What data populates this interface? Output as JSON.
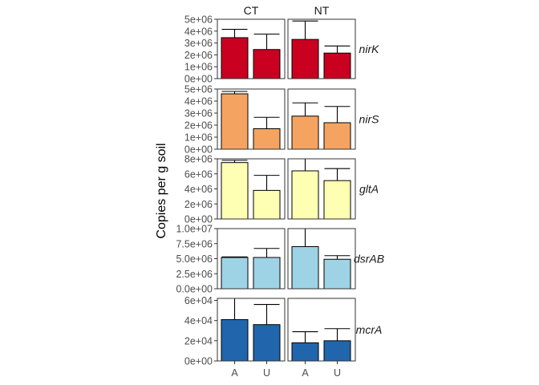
{
  "chart_data": {
    "type": "bar",
    "facet_columns": [
      "CT",
      "NT"
    ],
    "categories": [
      "A",
      "U"
    ],
    "ylabel": "Copies per g soil",
    "xlabel": "",
    "bar_outline_color": "#000000",
    "panels": [
      {
        "gene": "nirK",
        "color": "#CA0020",
        "yticks": [
          "0e+00",
          "1e+06",
          "2e+06",
          "3e+06",
          "4e+06",
          "5e+06"
        ],
        "ytick_values": [
          0,
          1000000,
          2000000,
          3000000,
          4000000,
          5000000
        ],
        "ylim": [
          0,
          5000000
        ],
        "CT": {
          "values": [
            3450000,
            2450000
          ],
          "error_upper": [
            4150000,
            3750000
          ]
        },
        "NT": {
          "values": [
            3300000,
            2150000
          ],
          "error_upper": [
            4850000,
            2750000
          ]
        }
      },
      {
        "gene": "nirS",
        "color": "#F4A460",
        "yticks": [
          "0e+00",
          "1e+06",
          "2e+06",
          "3e+06",
          "4e+06",
          "5e+06"
        ],
        "ytick_values": [
          0,
          1000000,
          2000000,
          3000000,
          4000000,
          5000000
        ],
        "ylim": [
          0,
          5000000
        ],
        "CT": {
          "values": [
            4600000,
            1700000
          ],
          "error_upper": [
            4800000,
            2650000
          ]
        },
        "NT": {
          "values": [
            2750000,
            2200000
          ],
          "error_upper": [
            3850000,
            3550000
          ]
        }
      },
      {
        "gene": "gltA",
        "color": "#FFFFB3",
        "yticks": [
          "0e+00",
          "2e+06",
          "4e+06",
          "6e+06",
          "8e+06"
        ],
        "ytick_values": [
          0,
          2000000,
          4000000,
          6000000,
          8000000
        ],
        "ylim": [
          0,
          8000000
        ],
        "CT": {
          "values": [
            7500000,
            3800000
          ],
          "error_upper": [
            7800000,
            5800000
          ]
        },
        "NT": {
          "values": [
            6400000,
            5100000
          ],
          "error_upper": [
            8000000,
            6700000
          ]
        }
      },
      {
        "gene": "dsrAB",
        "color": "#9ED3E6",
        "yticks": [
          "0.0e+00",
          "2.5e+06",
          "5.0e+06",
          "7.5e+06",
          "1.0e+07"
        ],
        "ytick_values": [
          0,
          2500000,
          5000000,
          7500000,
          10000000
        ],
        "ylim": [
          0,
          10000000
        ],
        "CT": {
          "values": [
            5200000,
            5200000
          ],
          "error_upper": [
            5300000,
            6700000
          ]
        },
        "NT": {
          "values": [
            7000000,
            4900000
          ],
          "error_upper": [
            10000000,
            5500000
          ]
        }
      },
      {
        "gene": "mcrA",
        "color": "#2166AC",
        "yticks": [
          "0e+00",
          "2e+04",
          "4e+04",
          "6e+04"
        ],
        "ytick_values": [
          0,
          20000,
          40000,
          60000
        ],
        "ylim": [
          0,
          62000
        ],
        "CT": {
          "values": [
            41000,
            36000
          ],
          "error_upper": [
            62000,
            56000
          ]
        },
        "NT": {
          "values": [
            18000,
            20000
          ],
          "error_upper": [
            29000,
            32000
          ]
        }
      }
    ]
  }
}
